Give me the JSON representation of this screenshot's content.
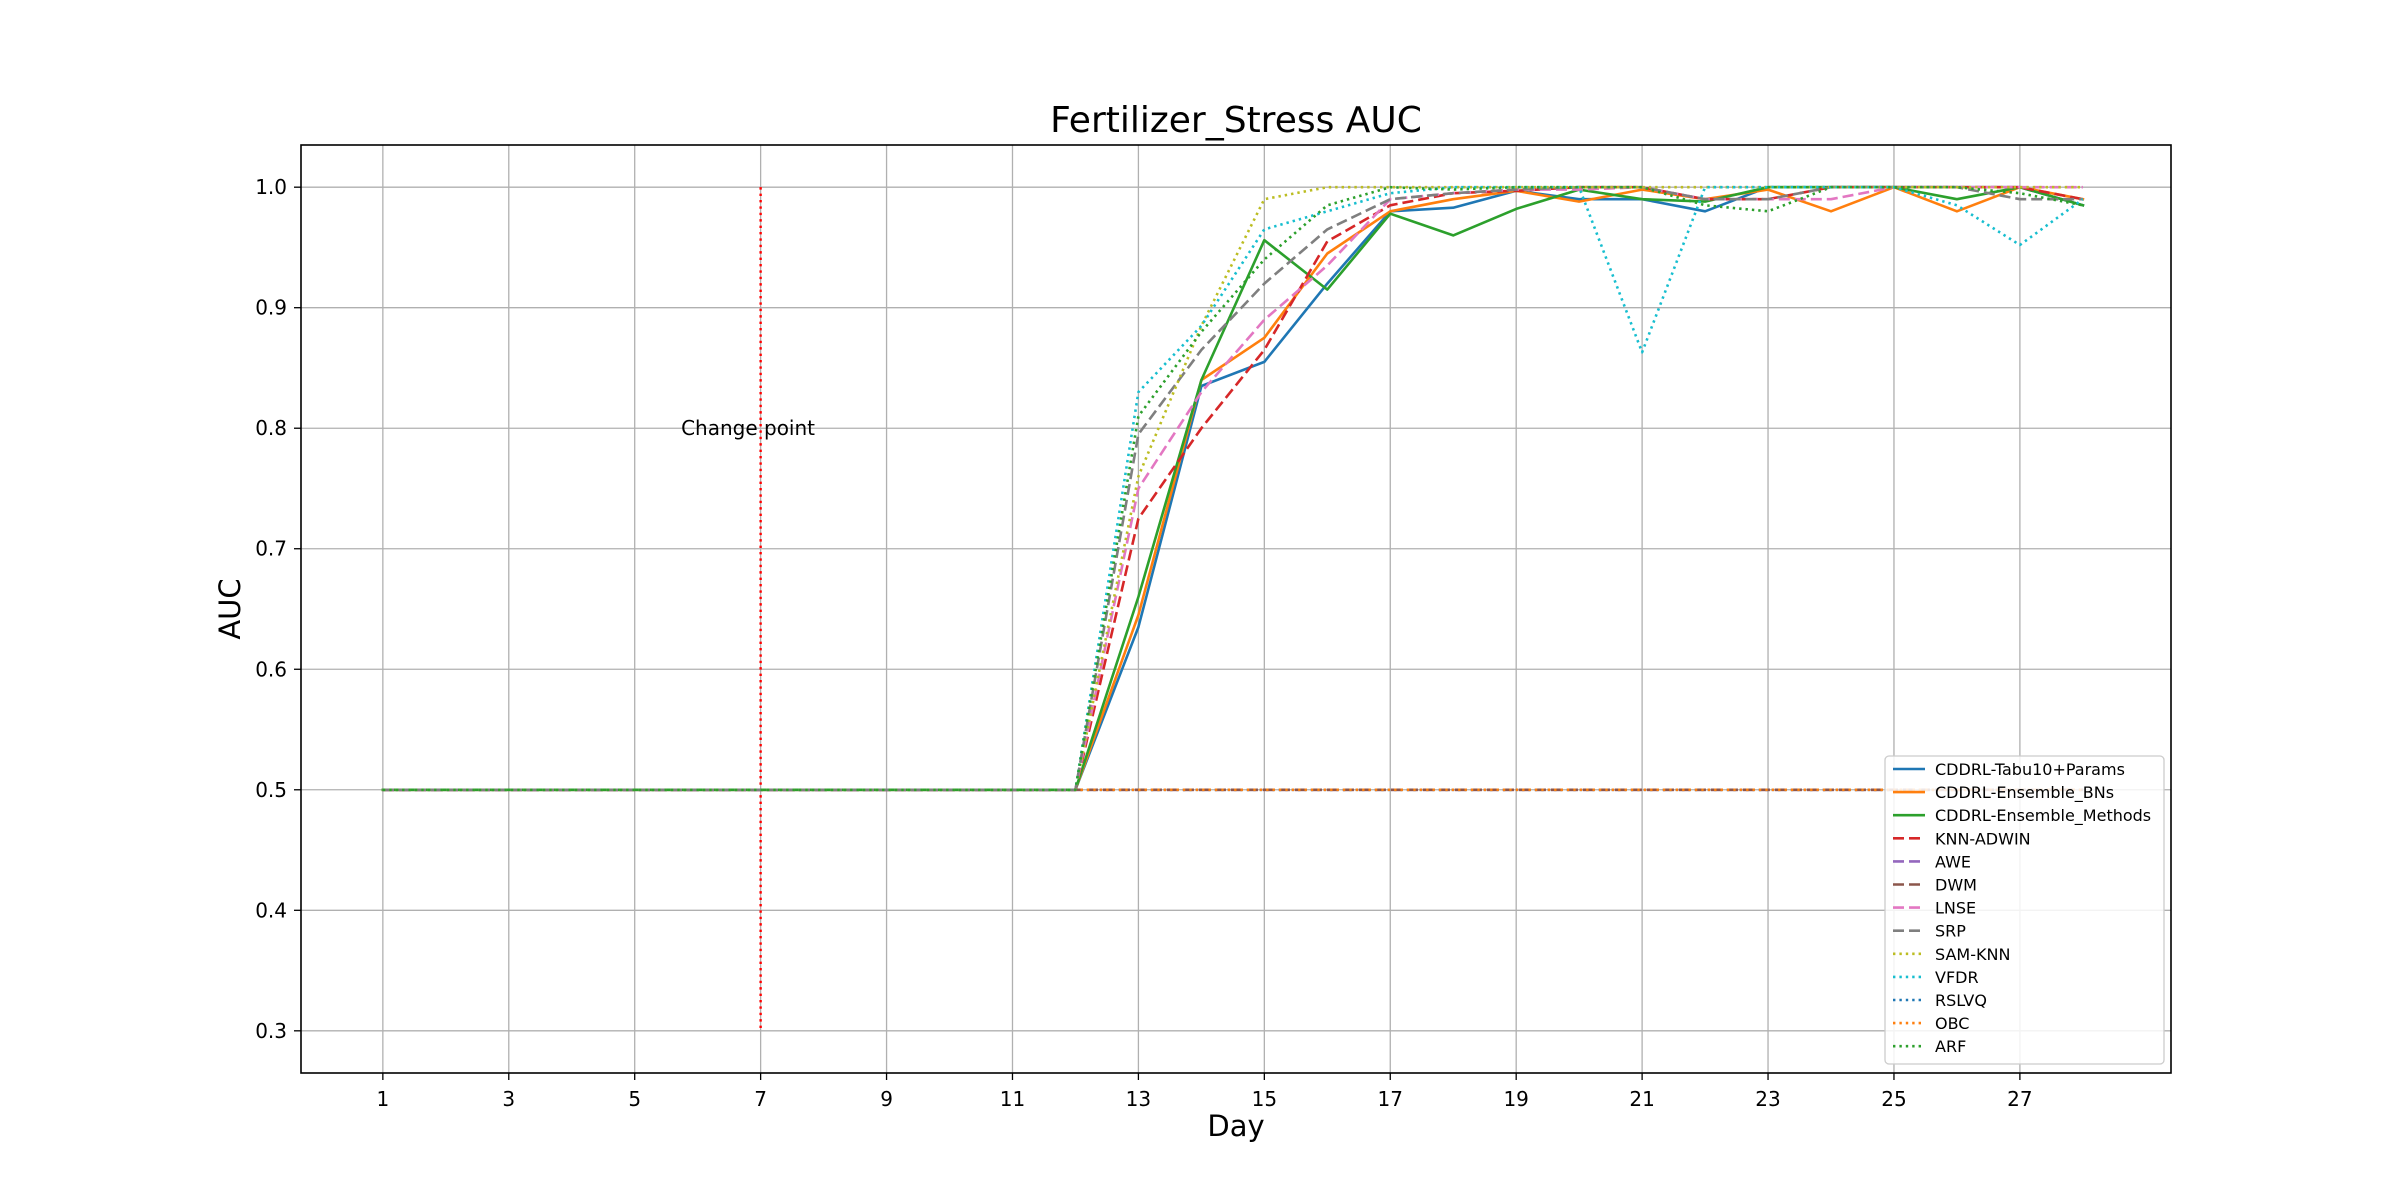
{
  "chart_data": {
    "type": "line",
    "title": "Fertilizer_Stress AUC",
    "xlabel": "Day",
    "ylabel": "AUC",
    "xlim": [
      -0.3,
      29.4
    ],
    "ylim": [
      0.265,
      1.035
    ],
    "xticks": [
      1,
      3,
      5,
      7,
      9,
      11,
      13,
      15,
      17,
      19,
      21,
      23,
      25,
      27
    ],
    "yticks": [
      0.3,
      0.4,
      0.5,
      0.6,
      0.7,
      0.8,
      0.9,
      1.0
    ],
    "ytick_labels": [
      "0.3",
      "0.4",
      "0.5",
      "0.6",
      "0.7",
      "0.8",
      "0.9",
      "1.0"
    ],
    "grid": true,
    "legend_position": "lower-right",
    "x": [
      1,
      2,
      3,
      4,
      5,
      6,
      7,
      8,
      9,
      10,
      11,
      12,
      13,
      14,
      15,
      16,
      17,
      18,
      19,
      20,
      21,
      22,
      23,
      24,
      25,
      26,
      27,
      28
    ],
    "series": [
      {
        "name": "CDDRL-Tabu10+Params",
        "color": "#1f77b4",
        "style": "solid",
        "values": [
          0.5,
          0.5,
          0.5,
          0.5,
          0.5,
          0.5,
          0.5,
          0.5,
          0.5,
          0.5,
          0.5,
          0.5,
          0.635,
          0.835,
          0.855,
          0.92,
          0.98,
          0.983,
          0.997,
          0.99,
          0.99,
          0.98,
          1.0,
          1.0,
          1.0,
          1.0,
          1.0,
          0.985
        ]
      },
      {
        "name": "CDDRL-Ensemble_BNs",
        "color": "#ff7f0e",
        "style": "solid",
        "values": [
          0.5,
          0.5,
          0.5,
          0.5,
          0.5,
          0.5,
          0.5,
          0.5,
          0.5,
          0.5,
          0.5,
          0.5,
          0.645,
          0.84,
          0.875,
          0.945,
          0.98,
          0.99,
          0.997,
          0.988,
          0.998,
          0.99,
          0.998,
          0.98,
          1.0,
          0.98,
          1.0,
          0.99
        ]
      },
      {
        "name": "CDDRL-Ensemble_Methods",
        "color": "#2ca02c",
        "style": "solid",
        "values": [
          0.5,
          0.5,
          0.5,
          0.5,
          0.5,
          0.5,
          0.5,
          0.5,
          0.5,
          0.5,
          0.5,
          0.5,
          0.66,
          0.84,
          0.956,
          0.915,
          0.978,
          0.96,
          0.982,
          0.998,
          0.99,
          0.988,
          1.0,
          1.0,
          1.0,
          0.99,
          1.0,
          0.985
        ]
      },
      {
        "name": "KNN-ADWIN",
        "color": "#d62728",
        "style": "dashed",
        "values": [
          0.5,
          0.5,
          0.5,
          0.5,
          0.5,
          0.5,
          0.5,
          0.5,
          0.5,
          0.5,
          0.5,
          0.5,
          0.725,
          0.8,
          0.865,
          0.955,
          0.985,
          0.995,
          0.997,
          1.0,
          1.0,
          0.99,
          0.99,
          1.0,
          1.0,
          1.0,
          1.0,
          0.99
        ]
      },
      {
        "name": "AWE",
        "color": "#9467bd",
        "style": "dashed",
        "values": [
          0.5,
          0.5,
          0.5,
          0.5,
          0.5,
          0.5,
          0.5,
          0.5,
          0.5,
          0.5,
          0.5,
          0.5,
          0.5,
          0.5,
          0.5,
          0.5,
          0.5,
          0.5,
          0.5,
          0.5,
          0.5,
          0.5,
          0.5,
          0.5,
          0.5,
          0.5,
          0.5,
          0.5
        ]
      },
      {
        "name": "DWM",
        "color": "#8c564b",
        "style": "dashed",
        "values": [
          0.5,
          0.5,
          0.5,
          0.5,
          0.5,
          0.5,
          0.5,
          0.5,
          0.5,
          0.5,
          0.5,
          0.5,
          0.5,
          0.5,
          0.5,
          0.5,
          0.5,
          0.5,
          0.5,
          0.5,
          0.5,
          0.5,
          0.5,
          0.5,
          0.5,
          0.5,
          0.5,
          0.5
        ]
      },
      {
        "name": "LNSE",
        "color": "#e377c2",
        "style": "dashed",
        "values": [
          0.5,
          0.5,
          0.5,
          0.5,
          0.5,
          0.5,
          0.5,
          0.5,
          0.5,
          0.5,
          0.5,
          0.5,
          0.75,
          0.83,
          0.89,
          0.935,
          0.99,
          0.995,
          0.998,
          0.998,
          1.0,
          0.99,
          0.99,
          0.99,
          1.0,
          1.0,
          1.0,
          1.0
        ]
      },
      {
        "name": "SRP",
        "color": "#7f7f7f",
        "style": "dashed",
        "values": [
          0.5,
          0.5,
          0.5,
          0.5,
          0.5,
          0.5,
          0.5,
          0.5,
          0.5,
          0.5,
          0.5,
          0.5,
          0.795,
          0.865,
          0.92,
          0.965,
          0.99,
          0.995,
          0.998,
          1.0,
          1.0,
          0.99,
          0.99,
          1.0,
          1.0,
          1.0,
          0.99,
          0.99
        ]
      },
      {
        "name": "SAM-KNN",
        "color": "#bcbd22",
        "style": "dotted",
        "values": [
          0.5,
          0.5,
          0.5,
          0.5,
          0.5,
          0.5,
          0.5,
          0.5,
          0.5,
          0.5,
          0.5,
          0.5,
          0.76,
          0.885,
          0.99,
          1.0,
          1.0,
          1.0,
          1.0,
          1.0,
          1.0,
          1.0,
          1.0,
          1.0,
          1.0,
          1.0,
          1.0,
          1.0
        ]
      },
      {
        "name": "VFDR",
        "color": "#17becf",
        "style": "dotted",
        "values": [
          0.5,
          0.5,
          0.5,
          0.5,
          0.5,
          0.5,
          0.5,
          0.5,
          0.5,
          0.5,
          0.5,
          0.5,
          0.83,
          0.885,
          0.965,
          0.98,
          0.995,
          1.0,
          1.0,
          1.0,
          0.863,
          1.0,
          1.0,
          1.0,
          1.0,
          0.985,
          0.952,
          0.99
        ]
      },
      {
        "name": "RSLVQ",
        "color": "#1f77b4",
        "style": "dotted",
        "values": [
          0.5,
          0.5,
          0.5,
          0.5,
          0.5,
          0.5,
          0.5,
          0.5,
          0.5,
          0.5,
          0.5,
          0.5,
          0.5,
          0.5,
          0.5,
          0.5,
          0.5,
          0.5,
          0.5,
          0.5,
          0.5,
          0.5,
          0.5,
          0.5,
          0.5,
          0.5,
          0.5,
          0.5
        ]
      },
      {
        "name": "OBC",
        "color": "#ff7f0e",
        "style": "dotted",
        "values": [
          0.5,
          0.5,
          0.5,
          0.5,
          0.5,
          0.5,
          0.5,
          0.5,
          0.5,
          0.5,
          0.5,
          0.5,
          0.5,
          0.5,
          0.5,
          0.5,
          0.5,
          0.5,
          0.5,
          0.5,
          0.5,
          0.5,
          0.5,
          0.5,
          0.5,
          0.5,
          0.5,
          0.5
        ]
      },
      {
        "name": "ARF",
        "color": "#2ca02c",
        "style": "dotted",
        "values": [
          0.5,
          0.5,
          0.5,
          0.5,
          0.5,
          0.5,
          0.5,
          0.5,
          0.5,
          0.5,
          0.5,
          0.5,
          0.81,
          0.88,
          0.94,
          0.985,
          1.0,
          0.998,
          1.0,
          1.0,
          1.0,
          0.985,
          0.98,
          1.0,
          1.0,
          1.0,
          0.995,
          0.985
        ]
      }
    ],
    "change_point": {
      "x": 7,
      "y_range": [
        0.3,
        1.0
      ],
      "color": "#ff0000",
      "label": "Change point",
      "label_position": [
        6.8,
        0.8
      ]
    }
  }
}
